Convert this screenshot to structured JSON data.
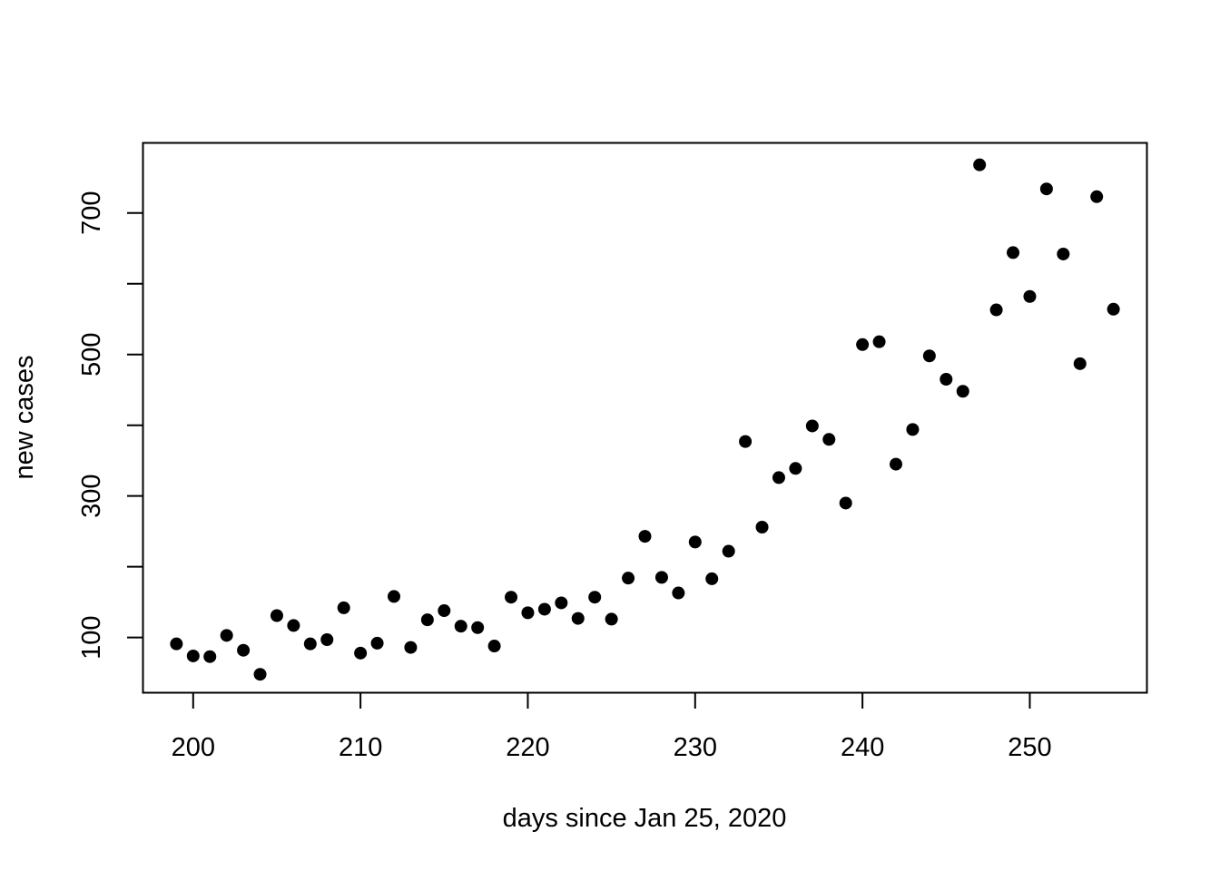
{
  "chart_data": {
    "type": "scatter",
    "title": "",
    "xlabel": "days since Jan 25, 2020",
    "ylabel": "new cases",
    "xlim": [
      197,
      257
    ],
    "ylim": [
      22,
      799
    ],
    "x_ticks": [
      200,
      210,
      220,
      230,
      240,
      250
    ],
    "y_ticks": [
      100,
      200,
      300,
      400,
      500,
      600,
      700
    ],
    "y_tick_labels": [
      "100",
      "",
      "300",
      "",
      "500",
      "",
      "700"
    ],
    "grid": false,
    "marker_color": "#000000",
    "series": [
      {
        "x": [
          199,
          200,
          201,
          202,
          203,
          204,
          205,
          206,
          207,
          208,
          209,
          210,
          211,
          212,
          213,
          214,
          215,
          216,
          217,
          218,
          219,
          220,
          221,
          222,
          223,
          224,
          225,
          226,
          227,
          228,
          229,
          230,
          231,
          232,
          233,
          234,
          235,
          236,
          237,
          238,
          239,
          240,
          241,
          242,
          243,
          244,
          245,
          246,
          247,
          248,
          249,
          250,
          251,
          252,
          253,
          254,
          255
        ],
        "y": [
          91,
          74,
          73,
          103,
          82,
          48,
          131,
          117,
          91,
          97,
          142,
          78,
          92,
          158,
          86,
          125,
          138,
          116,
          114,
          88,
          157,
          135,
          140,
          149,
          127,
          157,
          126,
          184,
          243,
          185,
          163,
          235,
          183,
          222,
          377,
          256,
          326,
          339,
          399,
          380,
          290,
          514,
          518,
          345,
          394,
          498,
          465,
          448,
          768,
          563,
          644,
          582,
          734,
          642,
          487,
          723,
          564
        ]
      }
    ]
  }
}
